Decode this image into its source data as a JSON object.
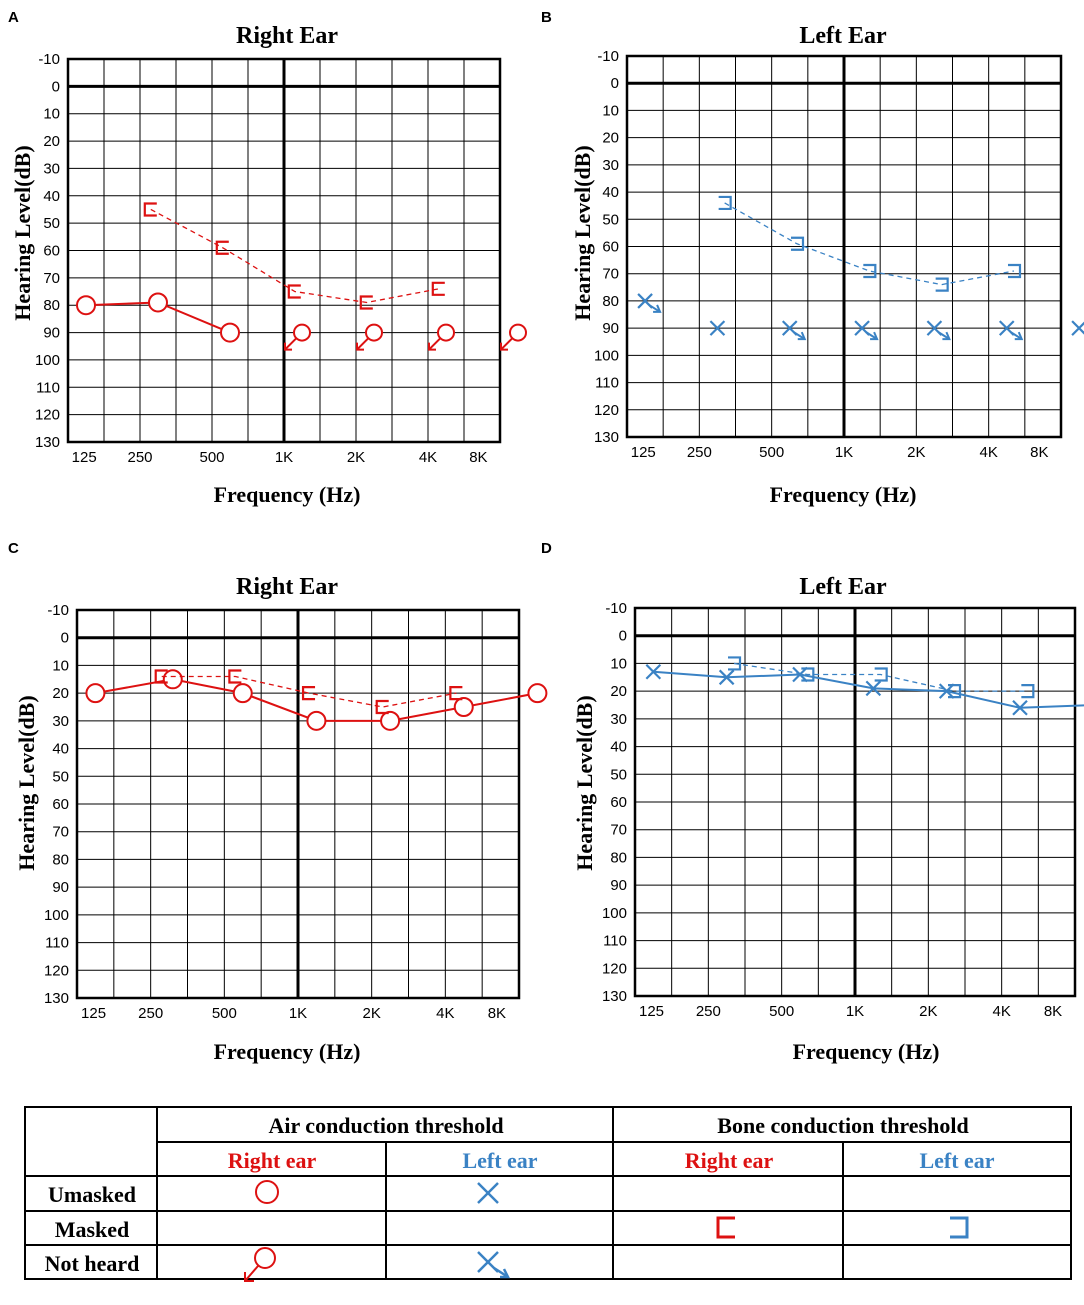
{
  "colors": {
    "right_ear": "#dd1111",
    "left_ear": "#3a82c4",
    "grid": "#000000"
  },
  "chart_data": [
    {
      "panel": "A",
      "type": "line",
      "title": "Right Ear",
      "ear": "right",
      "xlabel": "Frequency (Hz)",
      "ylabel": "Hearing Level(dB)",
      "x_ticks": [
        "125",
        "250",
        "500",
        "1K",
        "2K",
        "4K",
        "8K"
      ],
      "y_ticks": [
        "-10",
        "0",
        "10",
        "20",
        "30",
        "40",
        "50",
        "60",
        "70",
        "80",
        "90",
        "100",
        "110",
        "120",
        "130"
      ],
      "ylim": [
        -10,
        130
      ],
      "y_reversed": true,
      "series": [
        {
          "name": "Air conduction threshold - unmasked",
          "symbol": "circle",
          "line": "solid",
          "points": [
            {
              "x": 0,
              "y": 80
            },
            {
              "x": 1,
              "y": 79
            },
            {
              "x": 2,
              "y": 90
            }
          ]
        },
        {
          "name": "Air conduction threshold - not heard",
          "symbol": "circle-arrow",
          "line": "none",
          "points": [
            {
              "x": 3,
              "y": 90
            },
            {
              "x": 4,
              "y": 90
            },
            {
              "x": 5,
              "y": 90
            },
            {
              "x": 6,
              "y": 90
            }
          ]
        },
        {
          "name": "Bone conduction threshold - masked",
          "symbol": "bracket-right",
          "line": "dashed",
          "points": [
            {
              "x": 0.9,
              "y": 45
            },
            {
              "x": 1.9,
              "y": 59
            },
            {
              "x": 2.9,
              "y": 75
            },
            {
              "x": 3.9,
              "y": 79
            },
            {
              "x": 4.9,
              "y": 74
            }
          ]
        }
      ]
    },
    {
      "panel": "B",
      "type": "line",
      "title": "Left Ear",
      "ear": "left",
      "xlabel": "Frequency (Hz)",
      "ylabel": "Hearing Level(dB)",
      "x_ticks": [
        "125",
        "250",
        "500",
        "1K",
        "2K",
        "4K",
        "8K"
      ],
      "y_ticks": [
        "-10",
        "0",
        "10",
        "20",
        "30",
        "40",
        "50",
        "60",
        "70",
        "80",
        "90",
        "100",
        "110",
        "120",
        "130"
      ],
      "ylim": [
        -10,
        130
      ],
      "y_reversed": true,
      "series": [
        {
          "name": "Air conduction threshold - unmasked",
          "symbol": "x",
          "line": "none",
          "points": [
            {
              "x": 1,
              "y": 90
            }
          ]
        },
        {
          "name": "Air conduction threshold - not heard",
          "symbol": "x-arrow",
          "line": "none",
          "points": [
            {
              "x": 0,
              "y": 80
            },
            {
              "x": 2,
              "y": 90
            },
            {
              "x": 3,
              "y": 90
            },
            {
              "x": 4,
              "y": 90
            },
            {
              "x": 5,
              "y": 90
            },
            {
              "x": 6,
              "y": 90
            }
          ]
        },
        {
          "name": "Bone conduction threshold - masked",
          "symbol": "bracket-left",
          "line": "dashed",
          "points": [
            {
              "x": 1.1,
              "y": 44
            },
            {
              "x": 2.1,
              "y": 59
            },
            {
              "x": 3.1,
              "y": 69
            },
            {
              "x": 4.1,
              "y": 74
            },
            {
              "x": 5.1,
              "y": 69
            }
          ]
        }
      ]
    },
    {
      "panel": "C",
      "type": "line",
      "title": "Right Ear",
      "ear": "right",
      "xlabel": "Frequency (Hz)",
      "ylabel": "Hearing Level(dB)",
      "x_ticks": [
        "125",
        "250",
        "500",
        "1K",
        "2K",
        "4K",
        "8K"
      ],
      "y_ticks": [
        "-10",
        "0",
        "10",
        "20",
        "30",
        "40",
        "50",
        "60",
        "70",
        "80",
        "90",
        "100",
        "110",
        "120",
        "130"
      ],
      "ylim": [
        -10,
        130
      ],
      "y_reversed": true,
      "series": [
        {
          "name": "Air conduction threshold - unmasked",
          "symbol": "circle",
          "line": "solid",
          "points": [
            {
              "x": 0,
              "y": 20
            },
            {
              "x": 1.05,
              "y": 15
            },
            {
              "x": 2,
              "y": 20
            },
            {
              "x": 3,
              "y": 30
            },
            {
              "x": 4,
              "y": 30
            },
            {
              "x": 5,
              "y": 25
            },
            {
              "x": 6,
              "y": 20
            }
          ]
        },
        {
          "name": "Bone conduction threshold - masked",
          "symbol": "bracket-right",
          "line": "dashed",
          "points": [
            {
              "x": 0.9,
              "y": 14
            },
            {
              "x": 1.9,
              "y": 14
            },
            {
              "x": 2.9,
              "y": 20
            },
            {
              "x": 3.9,
              "y": 25
            },
            {
              "x": 4.9,
              "y": 20
            }
          ]
        }
      ]
    },
    {
      "panel": "D",
      "type": "line",
      "title": "Left Ear",
      "ear": "left",
      "xlabel": "Frequency (Hz)",
      "ylabel": "Hearing Level(dB)",
      "x_ticks": [
        "125",
        "250",
        "500",
        "1K",
        "2K",
        "4K",
        "8K"
      ],
      "y_ticks": [
        "-10",
        "0",
        "10",
        "20",
        "30",
        "40",
        "50",
        "60",
        "70",
        "80",
        "90",
        "100",
        "110",
        "120",
        "130"
      ],
      "ylim": [
        -10,
        130
      ],
      "y_reversed": true,
      "series": [
        {
          "name": "Air conduction threshold - unmasked",
          "symbol": "x",
          "line": "solid",
          "points": [
            {
              "x": 0,
              "y": 13
            },
            {
              "x": 1,
              "y": 15
            },
            {
              "x": 2,
              "y": 14
            },
            {
              "x": 3,
              "y": 19
            },
            {
              "x": 4,
              "y": 20
            },
            {
              "x": 5,
              "y": 26
            },
            {
              "x": 6,
              "y": 25
            }
          ]
        },
        {
          "name": "Bone conduction threshold - masked",
          "symbol": "bracket-left",
          "line": "dashed",
          "points": [
            {
              "x": 1.1,
              "y": 10
            },
            {
              "x": 2.1,
              "y": 14
            },
            {
              "x": 3.1,
              "y": 14
            },
            {
              "x": 4.1,
              "y": 20
            },
            {
              "x": 5.1,
              "y": 20
            }
          ]
        }
      ]
    }
  ],
  "legend": {
    "air_header": "Air conduction threshold",
    "bone_header": "Bone conduction threshold",
    "right_ear": "Right ear",
    "left_ear": "Left ear",
    "rows": [
      "Umasked",
      "Masked",
      "Not heard"
    ]
  }
}
